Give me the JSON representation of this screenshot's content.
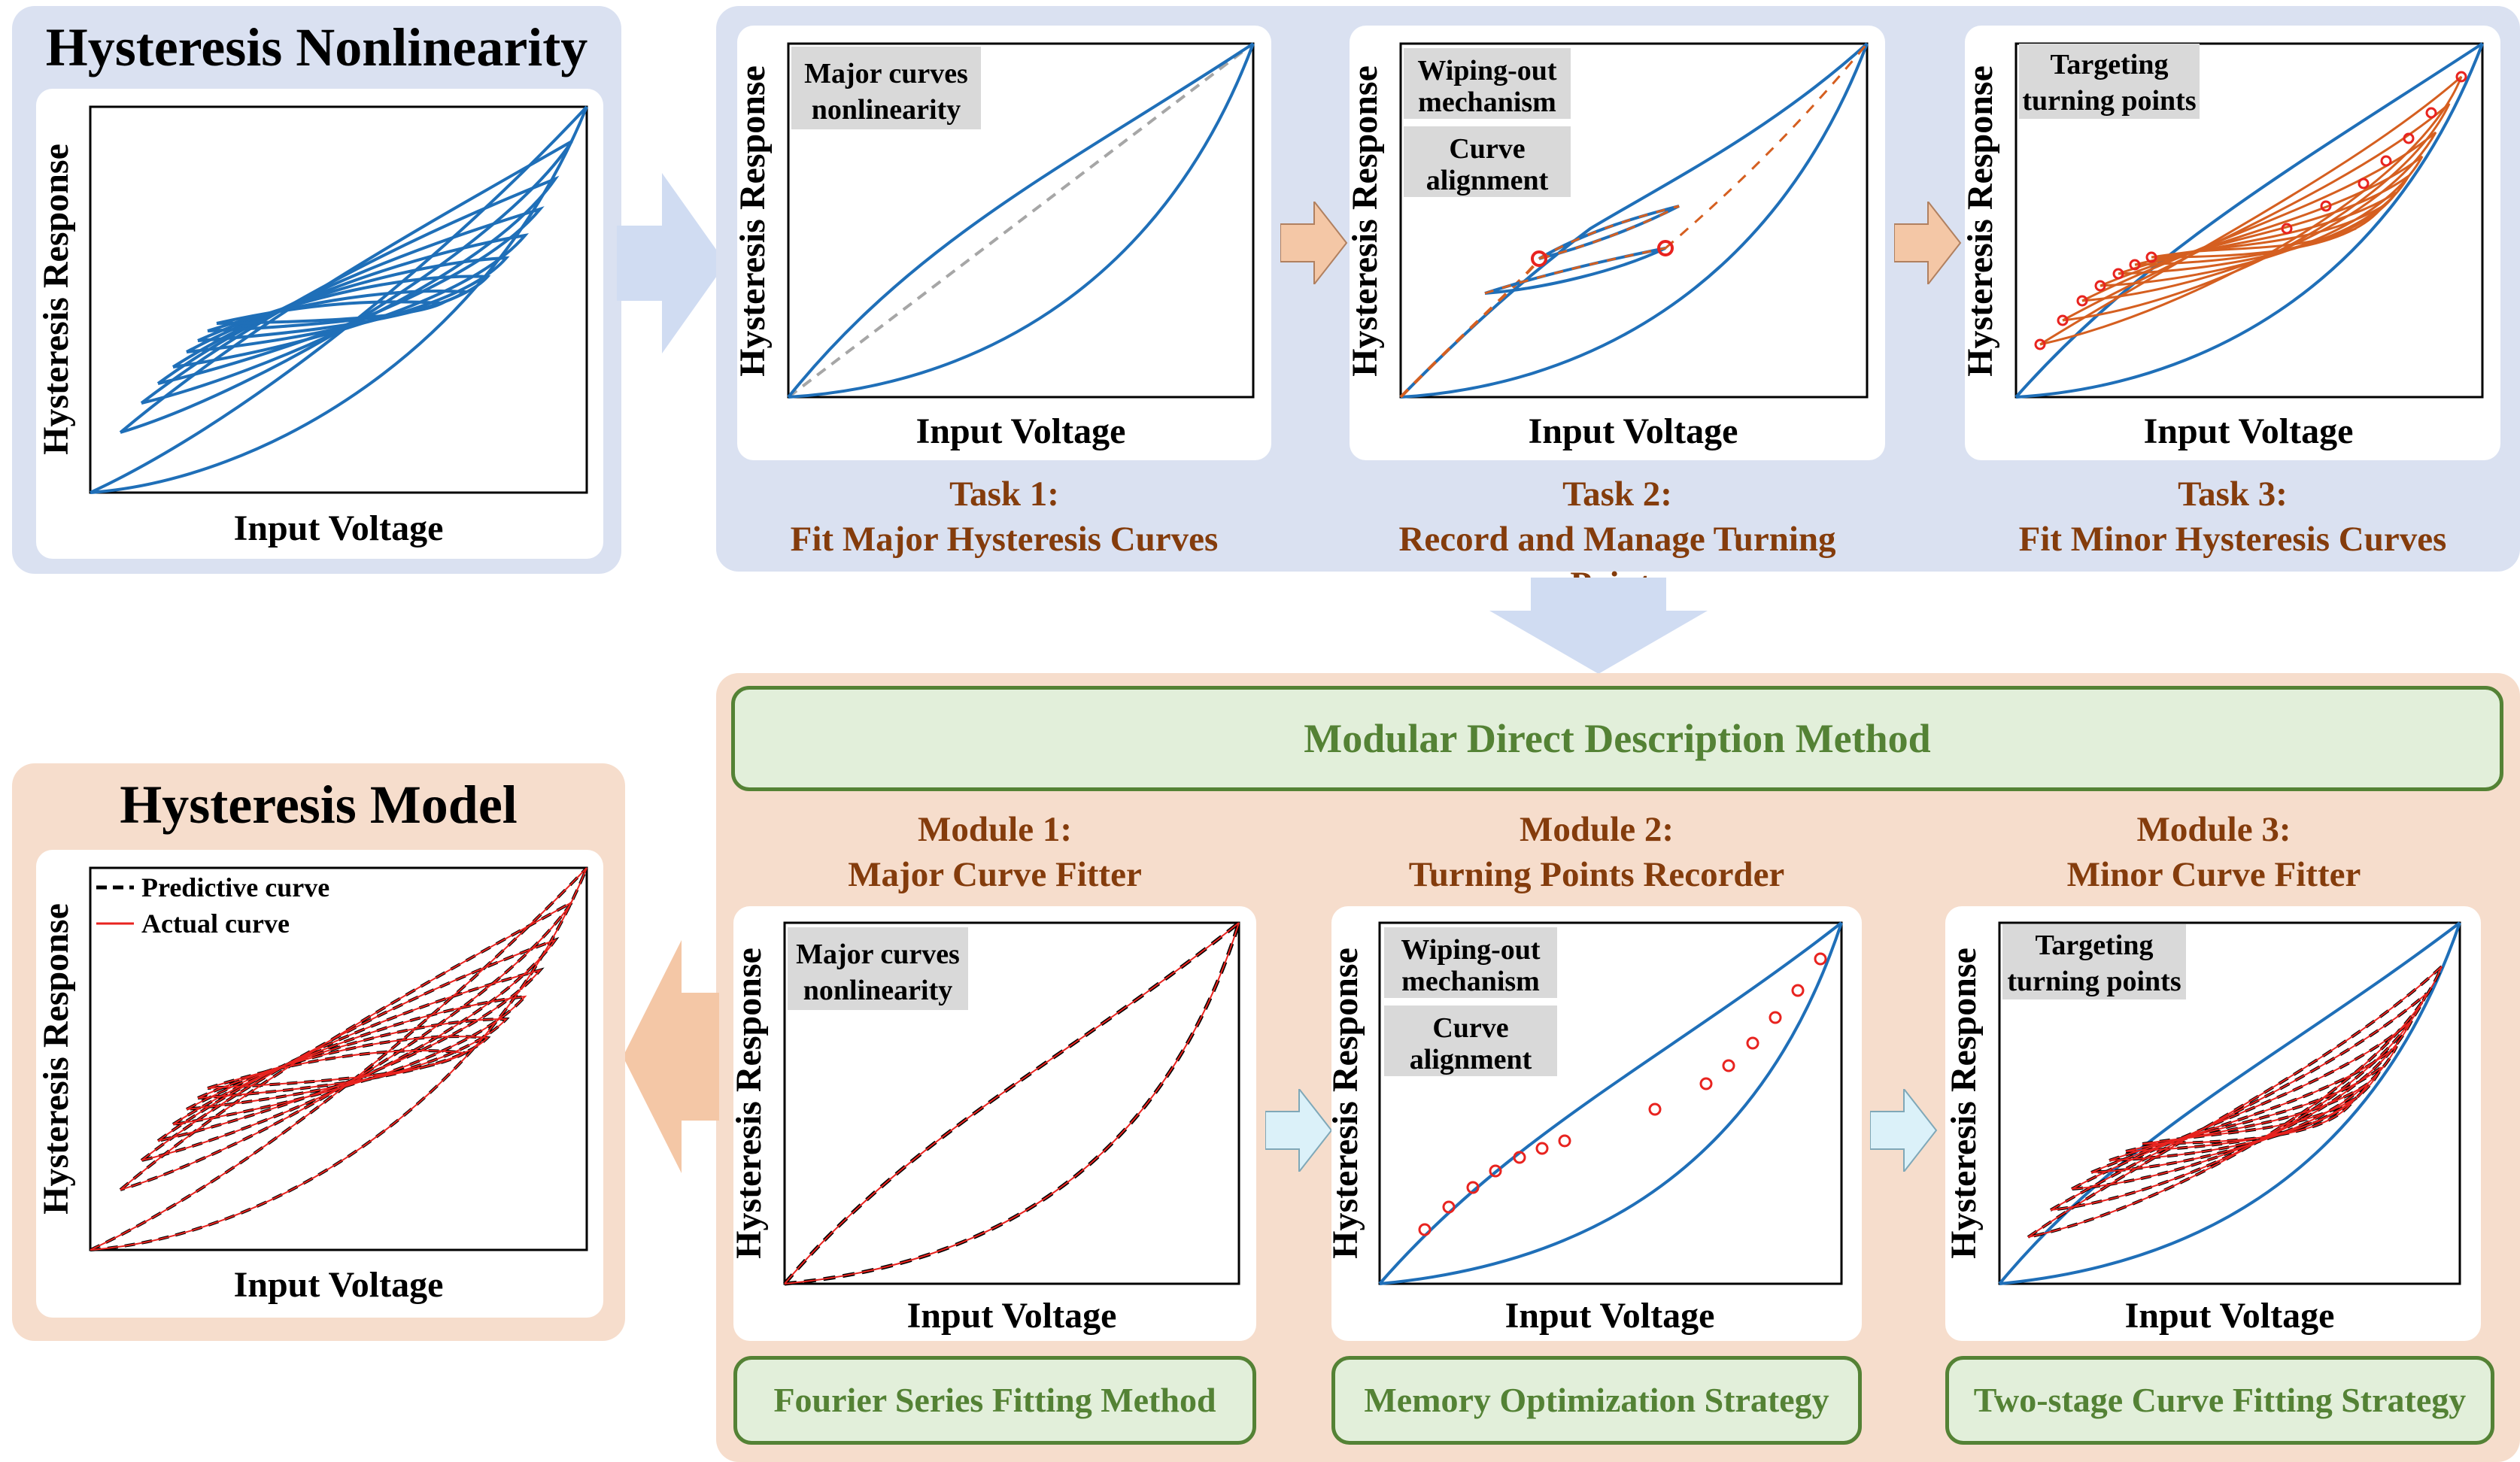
{
  "colors": {
    "blue_panel": "#dae1f1",
    "peach_panel": "#f6ddcc",
    "curve_blue": "#1f6fb8",
    "curve_orange": "#d55f20",
    "dashed_gray": "#a6a6a6",
    "text_brown": "#843c0c",
    "green_text": "#548235",
    "green_fill": "#e2efda",
    "arrow_blue": "#d0dcf2",
    "arrow_peach": "#f4c7a6",
    "arrow_cyan": "#dbf1f9",
    "tag_gray": "#d9d9d9",
    "marker_red": "#e8231f"
  },
  "axes": {
    "x": "Input Voltage",
    "y": "Hysteresis Response"
  },
  "nonlinearity": {
    "title": "Hysteresis Nonlinearity"
  },
  "model": {
    "title": "Hysteresis Model",
    "legend_predictive": "Predictive curve",
    "legend_actual": "Actual curve"
  },
  "tasks": [
    {
      "title": "Task 1:",
      "subtitle": "Fit Major Hysteresis Curves",
      "tags": [
        "Major curves",
        "nonlinearity"
      ]
    },
    {
      "title": "Task 2:",
      "subtitle": "Record and Manage Turning Points",
      "tags": [
        "Wiping-out",
        "mechanism",
        "Curve",
        "alignment"
      ]
    },
    {
      "title": "Task 3:",
      "subtitle": "Fit Minor Hysteresis Curves",
      "tags": [
        "Targeting",
        "turning points"
      ]
    }
  ],
  "method": {
    "title": "Modular Direct Description Method"
  },
  "modules": [
    {
      "title": "Module 1:",
      "subtitle": "Major Curve Fitter",
      "strategy": "Fourier Series Fitting Method",
      "tags": [
        "Major curves",
        "nonlinearity"
      ]
    },
    {
      "title": "Module 2:",
      "subtitle": "Turning Points Recorder",
      "strategy": "Memory Optimization Strategy",
      "tags": [
        "Wiping-out",
        "mechanism",
        "Curve",
        "alignment"
      ]
    },
    {
      "title": "Module 3:",
      "subtitle": "Minor Curve Fitter",
      "strategy": "Two-stage Curve Fitting Strategy",
      "tags": [
        "Targeting",
        "turning points"
      ]
    }
  ]
}
